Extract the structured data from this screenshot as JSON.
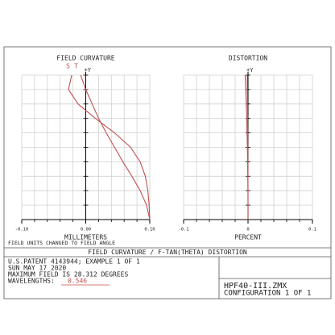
{
  "chart_data": [
    {
      "type": "line",
      "title": "FIELD CURVATURE",
      "x_label": "MILLIMETERS",
      "y_axis_label": "+Y",
      "xlim": [
        -0.1,
        0.1
      ],
      "ylim": [
        0,
        1
      ],
      "xticks": [
        {
          "value": -0.1,
          "label": "-0.10"
        },
        {
          "value": 0,
          "label": "0.00"
        },
        {
          "value": 0.1,
          "label": "0.10"
        }
      ],
      "y": [
        0,
        0.1,
        0.2,
        0.3,
        0.4,
        0.5,
        0.6,
        0.7,
        0.8,
        0.9,
        1.0
      ],
      "grid": true,
      "series": [
        {
          "name": "S",
          "color": "#c0504d",
          "values": [
            0.1,
            0.095,
            0.085,
            0.072,
            0.058,
            0.045,
            0.032,
            0.02,
            0.01,
            0.0,
            -0.008
          ]
        },
        {
          "name": "T",
          "color": "#c0504d",
          "values": [
            0.1,
            0.099,
            0.097,
            0.093,
            0.085,
            0.07,
            0.045,
            0.015,
            -0.012,
            -0.027,
            -0.022
          ]
        }
      ]
    },
    {
      "type": "line",
      "title": "DISTORTION",
      "x_label": "PERCENT",
      "y_axis_label": "+Y",
      "xlim": [
        -0.1,
        0.1
      ],
      "ylim": [
        0,
        1
      ],
      "xticks": [
        {
          "value": -0.1,
          "label": "-0.1"
        },
        0,
        {
          "value": 0.1,
          "label": "0.1"
        }
      ],
      "y": [
        0,
        0.1,
        0.2,
        0.3,
        0.4,
        0.5,
        0.6,
        0.7,
        0.8,
        0.9,
        1.0
      ],
      "grid": true,
      "series": [
        {
          "color": "#c0504d",
          "values": [
            0,
            0,
            -0.0001,
            -0.0003,
            -0.0006,
            -0.001,
            -0.0015,
            -0.002,
            -0.0028,
            -0.0036,
            -0.0045
          ]
        },
        {
          "color": "#c0504d",
          "values": [
            0,
            0,
            0,
            -0.0001,
            -0.0002,
            -0.0003,
            -0.0004,
            -0.0006,
            -0.0008,
            -0.001,
            -0.0012
          ]
        }
      ]
    }
  ],
  "footer": {
    "note": "FIELD UNITS CHANGED TO FIELD ANGLE",
    "title": "FIELD CURVATURE / F-TAN(THETA) DISTORTION",
    "lines": [
      "U.S.PATENT 4143944; EXAMPLE 1 OF 1",
      "SUN MAY 17 2020",
      "MAXIMUM FIELD IS 28.312 DEGREES"
    ],
    "wavelengths_label": "WAVELENGTHS:",
    "wavelength": "0.546",
    "file": "HPF40-III.ZMX",
    "configuration": "CONFIGURATION 1 OF 1"
  }
}
